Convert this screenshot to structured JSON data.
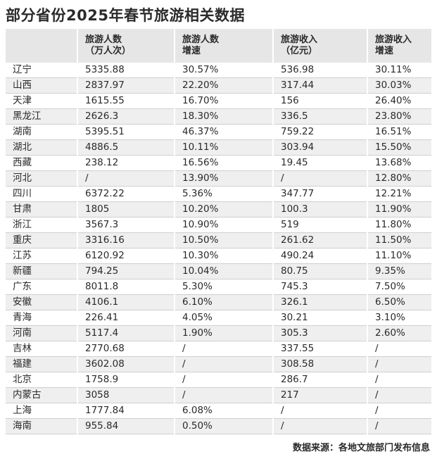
{
  "title": "部分省份2025年春节旅游相关数据",
  "headers": [
    {
      "line1": "",
      "line2": ""
    },
    {
      "line1": "旅游人数",
      "line2": "（万人次）"
    },
    {
      "line1": "旅游人数",
      "line2": "增速"
    },
    {
      "line1": "旅游收入",
      "line2": "（亿元）"
    },
    {
      "line1": "旅游收入",
      "line2": "增速"
    }
  ],
  "rows": [
    [
      "辽宁",
      "5335.88",
      "30.57%",
      "536.98",
      "30.11%"
    ],
    [
      "山西",
      "2837.97",
      "22.20%",
      "317.44",
      "30.03%"
    ],
    [
      "天津",
      "1615.55",
      "16.70%",
      "156",
      "26.40%"
    ],
    [
      "黑龙江",
      "2626.3",
      "18.30%",
      "336.5",
      "23.80%"
    ],
    [
      "湖南",
      "5395.51",
      "46.37%",
      "759.22",
      "16.51%"
    ],
    [
      "湖北",
      "4886.5",
      "10.11%",
      "303.94",
      "15.50%"
    ],
    [
      "西藏",
      "238.12",
      "16.56%",
      "19.45",
      "13.68%"
    ],
    [
      "河北",
      "/",
      "13.90%",
      "/",
      "12.80%"
    ],
    [
      "四川",
      "6372.22",
      "5.36%",
      "347.77",
      "12.21%"
    ],
    [
      "甘肃",
      "1805",
      "10.20%",
      "100.3",
      "11.90%"
    ],
    [
      "浙江",
      "3567.3",
      "10.90%",
      "519",
      "11.80%"
    ],
    [
      "重庆",
      "3316.16",
      "10.50%",
      "261.62",
      "11.50%"
    ],
    [
      "江苏",
      "6120.92",
      "10.30%",
      "490.24",
      "11.10%"
    ],
    [
      "新疆",
      "794.25",
      "10.04%",
      "80.75",
      "9.35%"
    ],
    [
      "广东",
      "8011.8",
      "5.30%",
      "745.3",
      "7.50%"
    ],
    [
      "安徽",
      "4106.1",
      "6.10%",
      "326.1",
      "6.50%"
    ],
    [
      "青海",
      "226.41",
      "4.05%",
      "30.21",
      "3.10%"
    ],
    [
      "河南",
      "5117.4",
      "1.90%",
      "305.3",
      "2.60%"
    ],
    [
      "吉林",
      "2770.68",
      "/",
      "337.55",
      "/"
    ],
    [
      "福建",
      "3602.08",
      "/",
      "308.58",
      "/"
    ],
    [
      "北京",
      "1758.9",
      "/",
      "286.7",
      "/"
    ],
    [
      "内蒙古",
      "3058",
      "/",
      "217",
      "/"
    ],
    [
      "上海",
      "1777.84",
      "6.08%",
      "/",
      "/"
    ],
    [
      "海南",
      "955.84",
      "0.50%",
      "/",
      "/"
    ]
  ],
  "source": "数据来源：各地文旅部门发布信息"
}
